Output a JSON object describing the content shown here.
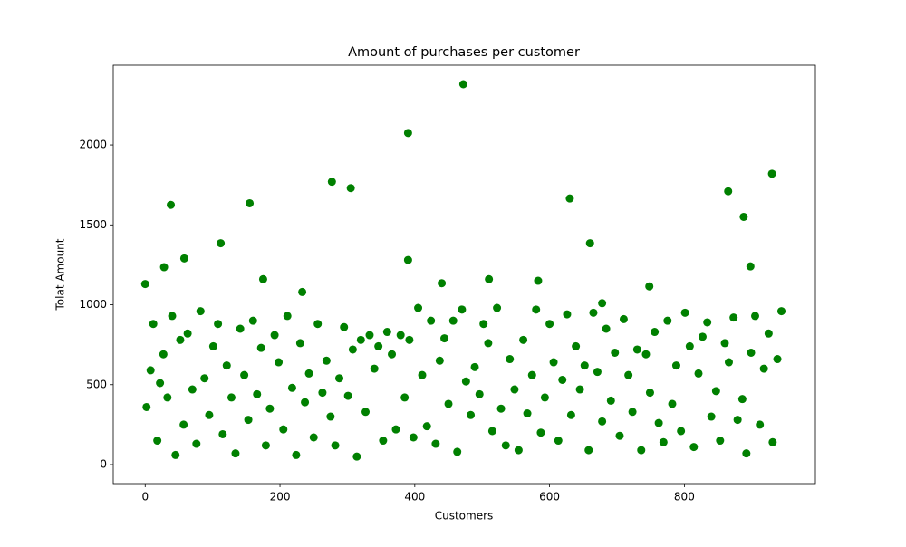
{
  "chart_data": {
    "type": "scatter",
    "title": "Amount of purchases per customer",
    "x_label": "Customers",
    "y_label": "Tolat Amount",
    "xlim": [
      -47.4,
      994.4
    ],
    "ylim": [
      -119,
      2499
    ],
    "xticks": [
      0,
      200,
      400,
      600,
      800
    ],
    "yticks": [
      0,
      500,
      1000,
      1500,
      2000
    ],
    "grid": false,
    "series": [
      {
        "color": "#008000",
        "x": [
          2,
          8,
          12,
          18,
          22,
          27,
          33,
          40,
          45,
          52,
          57,
          63,
          70,
          76,
          82,
          88,
          95,
          101,
          108,
          115,
          121,
          128,
          134,
          141,
          147,
          153,
          160,
          166,
          172,
          179,
          185,
          192,
          198,
          205,
          211,
          218,
          224,
          230,
          237,
          243,
          250,
          256,
          263,
          269,
          275,
          282,
          288,
          295,
          301,
          308,
          314,
          320,
          327,
          333,
          340,
          346,
          353,
          359,
          366,
          372,
          379,
          385,
          392,
          398,
          405,
          411,
          418,
          424,
          431,
          437,
          444,
          450,
          457,
          463,
          470,
          476,
          483,
          489,
          496,
          502,
          509,
          515,
          522,
          528,
          535,
          541,
          548,
          554,
          561,
          567,
          574,
          580,
          587,
          593,
          600,
          606,
          613,
          619,
          626,
          632,
          639,
          645,
          652,
          658,
          665,
          671,
          678,
          684,
          691,
          697,
          704,
          710,
          717,
          723,
          730,
          736,
          743,
          749,
          756,
          762,
          769,
          775,
          782,
          788,
          795,
          801,
          808,
          814,
          821,
          827,
          834,
          840,
          847,
          853,
          860,
          866,
          873,
          879,
          886,
          892,
          899,
          905,
          912,
          918,
          925,
          931,
          938,
          944,
          0,
          38,
          58,
          28,
          112,
          155,
          175,
          233,
          277,
          305,
          390,
          390,
          440,
          472,
          510,
          583,
          630,
          660,
          678,
          748,
          865,
          888,
          898,
          930
        ],
        "values": [
          360,
          590,
          880,
          150,
          510,
          690,
          420,
          930,
          60,
          780,
          250,
          820,
          470,
          130,
          960,
          540,
          310,
          740,
          880,
          190,
          620,
          420,
          70,
          850,
          560,
          280,
          900,
          440,
          730,
          120,
          350,
          810,
          640,
          220,
          930,
          480,
          60,
          760,
          390,
          570,
          170,
          880,
          450,
          650,
          300,
          120,
          540,
          860,
          430,
          720,
          50,
          780,
          330,
          810,
          600,
          740,
          150,
          830,
          690,
          220,
          810,
          420,
          780,
          170,
          980,
          560,
          240,
          900,
          130,
          650,
          790,
          380,
          900,
          80,
          970,
          520,
          310,
          610,
          440,
          880,
          760,
          210,
          980,
          350,
          120,
          660,
          470,
          90,
          780,
          320,
          560,
          970,
          200,
          420,
          880,
          640,
          150,
          530,
          940,
          310,
          740,
          470,
          620,
          90,
          950,
          580,
          270,
          850,
          400,
          700,
          180,
          910,
          560,
          330,
          720,
          90,
          690,
          450,
          830,
          260,
          140,
          900,
          380,
          620,
          210,
          950,
          740,
          110,
          570,
          800,
          890,
          300,
          460,
          150,
          760,
          640,
          920,
          280,
          410,
          70,
          700,
          930,
          250,
          600,
          820,
          140,
          660,
          960,
          1130,
          1625,
          1290,
          1235,
          1385,
          1635,
          1160,
          1080,
          1770,
          1730,
          2075,
          1280,
          1135,
          2380,
          1160,
          1150,
          1665,
          1385,
          1010,
          1115,
          1710,
          1550,
          1240,
          1820
        ]
      }
    ]
  }
}
